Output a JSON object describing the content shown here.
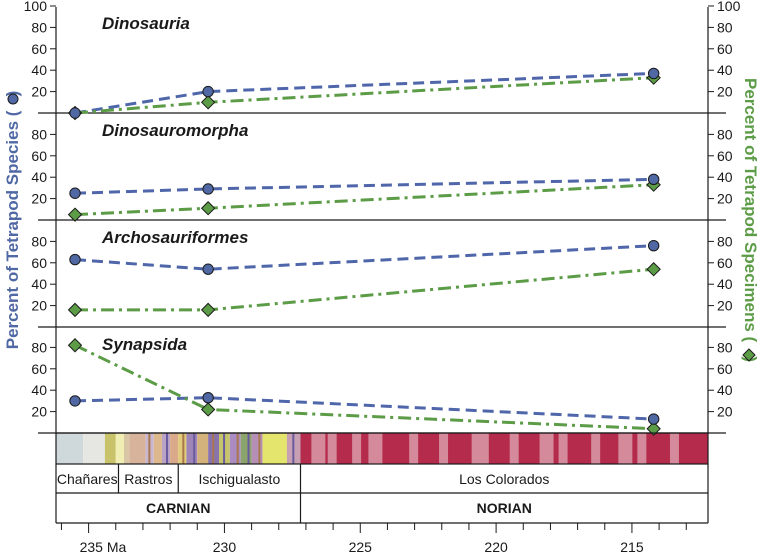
{
  "chart_data": {
    "type": "line",
    "x_unit": "Ma",
    "xlim": [
      236.2,
      212.2
    ],
    "x_ticks": [
      235,
      230,
      225,
      220,
      215
    ],
    "x_tick_labels": [
      "235 Ma",
      "230",
      "225",
      "220",
      "215"
    ],
    "ylabel_left": "Percent of Tetrapod Species (",
    "ylabel_right": "Percent of Tetrapod Specimens (",
    "ylabel_right_suffix": ")",
    "ylabel_closing": ")",
    "colors": {
      "species": "#5068a4",
      "specimens": "#5d9c47",
      "series_line_species": "#4f66aa",
      "series_line_specimens": "#5d9c47"
    },
    "panels": [
      {
        "title": "Dinosauria",
        "ylim": [
          0,
          100
        ],
        "left_ticks": [
          "20",
          "40",
          "60",
          "80",
          "100"
        ],
        "right_ticks": [
          "20",
          "40",
          "60",
          "80",
          "100"
        ],
        "species": {
          "x": [
            235.5,
            230.6,
            214.2
          ],
          "y": [
            0,
            20,
            37
          ]
        },
        "specimens": {
          "x": [
            235.5,
            230.6,
            214.2
          ],
          "y": [
            0,
            10,
            33
          ]
        }
      },
      {
        "title": "Dinosauromorpha",
        "ylim": [
          0,
          100
        ],
        "left_ticks": [
          "20",
          "40",
          "60",
          "80"
        ],
        "right_ticks": [
          "20",
          "40",
          "60",
          "80"
        ],
        "species": {
          "x": [
            235.5,
            230.6,
            214.2
          ],
          "y": [
            25,
            29,
            38
          ]
        },
        "specimens": {
          "x": [
            235.5,
            230.6,
            214.2
          ],
          "y": [
            5,
            11,
            33
          ]
        }
      },
      {
        "title": "Archosauriformes",
        "ylim": [
          0,
          100
        ],
        "left_ticks": [
          "20",
          "40",
          "60",
          "80"
        ],
        "right_ticks": [
          "20",
          "40",
          "60",
          "80"
        ],
        "species": {
          "x": [
            235.5,
            230.6,
            214.2
          ],
          "y": [
            63,
            54,
            76
          ]
        },
        "specimens": {
          "x": [
            235.5,
            230.6,
            214.2
          ],
          "y": [
            16,
            16,
            54
          ]
        }
      },
      {
        "title": "Synapsida",
        "ylim": [
          0,
          100
        ],
        "left_ticks": [
          "20",
          "40",
          "60",
          "80"
        ],
        "right_ticks": [
          "20",
          "40",
          "60",
          "80"
        ],
        "species": {
          "x": [
            235.5,
            230.6,
            214.2
          ],
          "y": [
            30,
            33,
            13
          ]
        },
        "specimens": {
          "x": [
            235.5,
            230.6,
            214.2
          ],
          "y": [
            82,
            22,
            4
          ]
        }
      }
    ],
    "formations": [
      {
        "name": "Chañares",
        "start": 236.2,
        "end": 233.9
      },
      {
        "name": "Rastros",
        "start": 233.9,
        "end": 231.7
      },
      {
        "name": "Ischigualasto",
        "start": 231.7,
        "end": 227.2
      },
      {
        "name": "Los Colorados",
        "start": 227.2,
        "end": 212.2
      }
    ],
    "stages": [
      {
        "name": "CARNIAN",
        "start": 236.2,
        "end": 227.2
      },
      {
        "name": "NORIAN",
        "start": 227.2,
        "end": 212.2
      }
    ]
  }
}
